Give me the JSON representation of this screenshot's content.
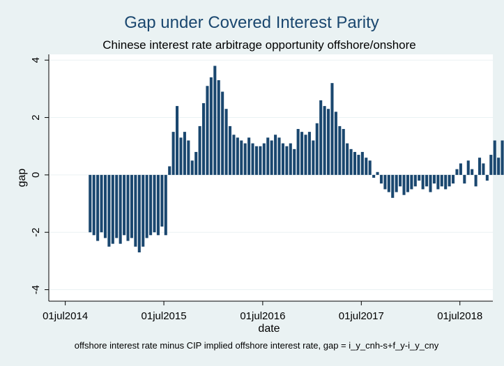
{
  "chart_data": {
    "type": "bar",
    "title": "Gap under Covered Interest Parity",
    "subtitle": "Chinese interest rate arbitrage opportunity offshore/onshore",
    "xlabel": "date",
    "ylabel": "gap",
    "note": "offshore interest rate minus CIP implied offshore interest rate, gap = i_y_cnh-s+f_y-i_y_cny",
    "xlim": [
      "2014-05-01",
      "2018-10-31"
    ],
    "ylim": [
      -4.4,
      4.2
    ],
    "x_ticks": [
      "2014-07-01",
      "2015-07-01",
      "2016-07-01",
      "2017-07-01",
      "2018-07-01"
    ],
    "x_tick_labels": [
      "01jul2014",
      "01jul2015",
      "01jul2016",
      "01jul2017",
      "01jul2018"
    ],
    "y_ticks": [
      -4,
      -2,
      0,
      2,
      4
    ],
    "y_tick_labels": [
      "-4",
      "-2",
      "0",
      "2",
      "4"
    ],
    "grid": true,
    "legend": "none",
    "series": [
      {
        "color": "#1a476f",
        "start": "2014-10-01",
        "step_days": 14,
        "values": [
          -2.0,
          -2.1,
          -2.3,
          -2.0,
          -2.2,
          -2.5,
          -2.4,
          -2.2,
          -2.4,
          -2.1,
          -2.3,
          -2.2,
          -2.5,
          -2.7,
          -2.5,
          -2.2,
          -2.1,
          -2.0,
          -2.1,
          -1.8,
          -2.1,
          0.3,
          1.5,
          2.4,
          1.3,
          1.5,
          1.2,
          0.5,
          0.8,
          1.7,
          2.5,
          3.1,
          3.4,
          3.8,
          3.3,
          2.9,
          2.3,
          1.7,
          1.4,
          1.3,
          1.2,
          1.1,
          1.3,
          1.1,
          1.0,
          1.0,
          1.1,
          1.3,
          1.2,
          1.4,
          1.3,
          1.1,
          1.0,
          1.1,
          0.9,
          1.6,
          1.5,
          1.4,
          1.5,
          1.2,
          1.8,
          2.6,
          2.4,
          2.3,
          3.2,
          2.2,
          1.7,
          1.6,
          1.1,
          0.9,
          0.8,
          0.7,
          0.8,
          0.6,
          0.5,
          -0.1,
          0.1,
          -0.3,
          -0.5,
          -0.6,
          -0.8,
          -0.6,
          -0.4,
          -0.7,
          -0.6,
          -0.5,
          -0.4,
          -0.2,
          -0.5,
          -0.4,
          -0.6,
          -0.3,
          -0.5,
          -0.4,
          -0.5,
          -0.4,
          -0.3,
          0.2,
          0.4,
          -0.3,
          0.5,
          0.2,
          -0.4,
          0.6,
          0.4,
          -0.2,
          0.7,
          1.2,
          0.6,
          1.2
        ]
      }
    ]
  }
}
